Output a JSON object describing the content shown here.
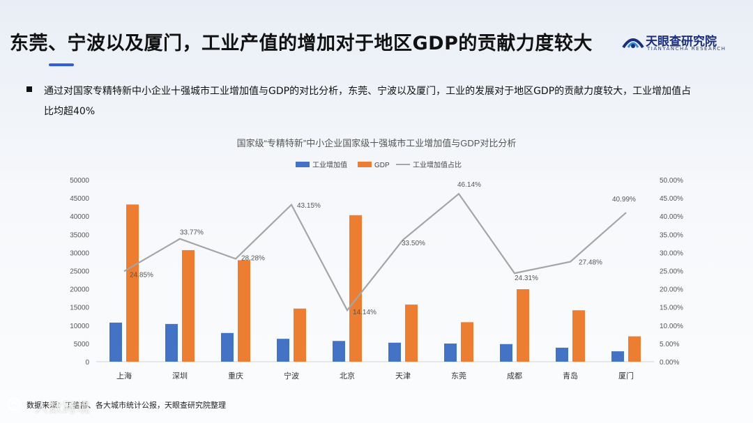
{
  "header": {
    "title": "东莞、宁波以及厦门，工业产值的增加对于地区GDP的贡献力度较大",
    "logo_cn": "天眼查研究院",
    "logo_en": "TIANYANCHA RESEARCH"
  },
  "summary": "通过对国家专精特新中小企业十强城市工业增加值与GDP的对比分析，东莞、宁波以及厦门，工业的发展对于地区GDP的贡献力度较大，工业增加值占比均超40%",
  "source": "数据来源：工信部、各大城市统计公报，天眼查研究院整理",
  "watermark": "人数跨境",
  "colors": {
    "bar1": "#4472c4",
    "bar2": "#ed7d31",
    "line": "#a5a5a5",
    "accent": "#2f5fe0"
  },
  "chart_data": {
    "type": "bar",
    "title": "国家级“专精特新”中小企业国家级十强城市工业增加值与GDP对比分析",
    "categories": [
      "上海",
      "深圳",
      "重庆",
      "宁波",
      "北京",
      "天津",
      "东莞",
      "成都",
      "青岛",
      "厦门"
    ],
    "series": [
      {
        "name": "工业增加值",
        "kind": "bar",
        "axis": "left",
        "color": "#4472c4",
        "values": [
          10739,
          10367,
          7888,
          6288,
          5694,
          5223,
          4984,
          4838,
          3845,
          2854
        ]
      },
      {
        "name": "GDP",
        "kind": "bar",
        "axis": "left",
        "color": "#ed7d31",
        "values": [
          43215,
          30665,
          27894,
          14595,
          40270,
          15695,
          10855,
          19917,
          14136,
          6963
        ]
      },
      {
        "name": "工业增加值占比",
        "kind": "line",
        "axis": "right",
        "color": "#a5a5a5",
        "values": [
          24.85,
          33.77,
          28.28,
          43.15,
          14.14,
          33.5,
          46.14,
          24.31,
          27.48,
          40.99
        ],
        "labels": [
          "24.85%",
          "33.77%",
          "28.28%",
          "43.15%",
          "14.14%",
          "33.50%",
          "46.14%",
          "24.31%",
          "27.48%",
          "40.99%"
        ]
      }
    ],
    "yleft": {
      "min": 0,
      "max": 50000,
      "ticks": [
        "0",
        "5000",
        "10000",
        "15000",
        "20000",
        "25000",
        "30000",
        "35000",
        "40000",
        "45000",
        "50000"
      ]
    },
    "yright": {
      "min": 0,
      "max": 50,
      "ticks": [
        "0.00%",
        "5.00%",
        "10.00%",
        "15.00%",
        "20.00%",
        "25.00%",
        "30.00%",
        "35.00%",
        "40.00%",
        "45.00%",
        "50.00%"
      ]
    },
    "legend_position": "top",
    "grid": false
  }
}
